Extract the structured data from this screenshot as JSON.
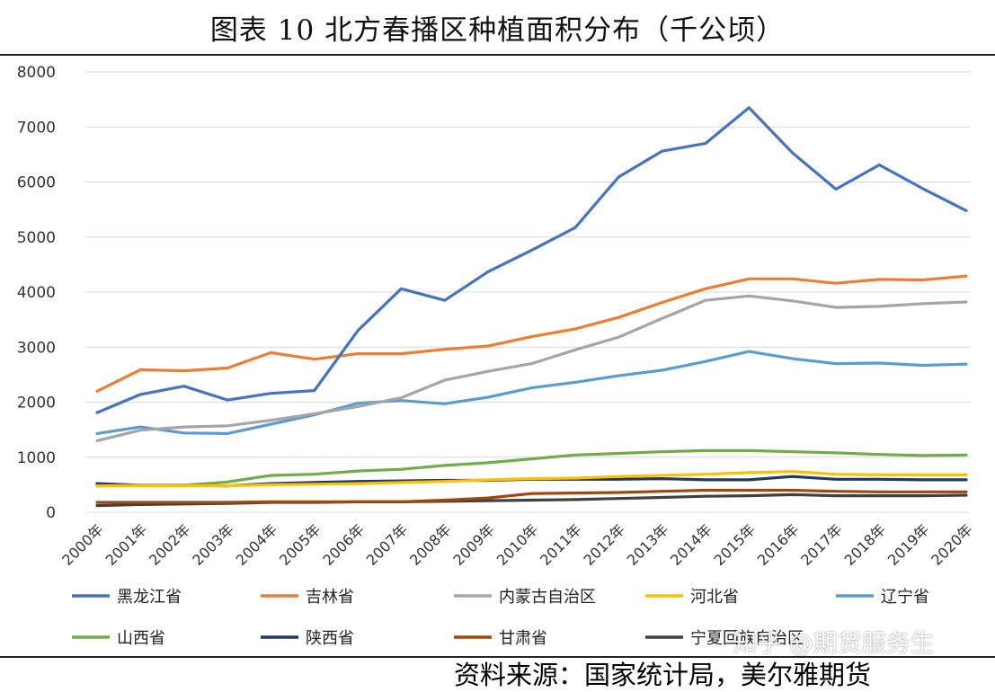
{
  "title": "图表 10 北方春播区种植面积分布（千公顷）",
  "source": "资料来源：国家统计局，美尔雅期货",
  "watermark": "知乎 @期货服务生",
  "chart_data": {
    "type": "line",
    "title": "图表 10 北方春播区种植面积分布（千公顷）",
    "xlabel": "",
    "ylabel": "",
    "x": [
      "2000年",
      "2001年",
      "2002年",
      "2003年",
      "2004年",
      "2005年",
      "2006年",
      "2007年",
      "2008年",
      "2009年",
      "2010年",
      "2011年",
      "2012年",
      "2013年",
      "2014年",
      "2015年",
      "2016年",
      "2017年",
      "2018年",
      "2019年",
      "2020年"
    ],
    "ylim": [
      0,
      8000
    ],
    "yticks": [
      0,
      1000,
      2000,
      3000,
      4000,
      5000,
      6000,
      7000,
      8000
    ],
    "grid": true,
    "legend_position": "bottom",
    "series": [
      {
        "name": "黑龙江省",
        "color": "#4472C4",
        "values": [
          1810,
          2140,
          2290,
          2040,
          2160,
          2210,
          3300,
          4060,
          3850,
          4370,
          4760,
          5170,
          6090,
          6560,
          6700,
          7350,
          6530,
          5870,
          6310,
          5880,
          5480
        ]
      },
      {
        "name": "吉林省",
        "color": "#ED7D31",
        "values": [
          2200,
          2590,
          2570,
          2620,
          2900,
          2780,
          2880,
          2880,
          2960,
          3020,
          3190,
          3330,
          3540,
          3810,
          4060,
          4240,
          4240,
          4160,
          4230,
          4220,
          4290
        ]
      },
      {
        "name": "内蒙古自治区",
        "color": "#A5A5A5",
        "values": [
          1300,
          1490,
          1550,
          1570,
          1670,
          1790,
          1920,
          2080,
          2400,
          2560,
          2700,
          2950,
          3180,
          3520,
          3850,
          3930,
          3840,
          3720,
          3740,
          3790,
          3820
        ]
      },
      {
        "name": "河北省",
        "color": "#FFC000",
        "values": [
          480,
          480,
          480,
          480,
          500,
          510,
          520,
          540,
          560,
          590,
          610,
          620,
          650,
          670,
          690,
          720,
          740,
          690,
          680,
          680,
          680
        ]
      },
      {
        "name": "辽宁省",
        "color": "#5B9BD5",
        "values": [
          1430,
          1550,
          1440,
          1430,
          1600,
          1770,
          1980,
          2030,
          1970,
          2090,
          2260,
          2360,
          2480,
          2580,
          2740,
          2920,
          2790,
          2700,
          2710,
          2670,
          2690
        ]
      },
      {
        "name": "山西省",
        "color": "#70AD47",
        "values": [
          480,
          490,
          490,
          550,
          670,
          690,
          750,
          780,
          850,
          900,
          970,
          1040,
          1070,
          1100,
          1120,
          1120,
          1100,
          1080,
          1050,
          1030,
          1040
        ]
      },
      {
        "name": "陕西省",
        "color": "#1F3864",
        "values": [
          520,
          490,
          490,
          480,
          520,
          540,
          560,
          570,
          580,
          580,
          600,
          600,
          600,
          610,
          590,
          590,
          650,
          600,
          600,
          590,
          590
        ]
      },
      {
        "name": "甘肃省",
        "color": "#9E480E",
        "values": [
          180,
          180,
          180,
          180,
          190,
          190,
          190,
          190,
          220,
          260,
          340,
          350,
          360,
          380,
          400,
          400,
          400,
          380,
          370,
          370,
          370
        ]
      },
      {
        "name": "宁夏回族自治区",
        "color": "#404040",
        "values": [
          120,
          140,
          150,
          160,
          180,
          180,
          190,
          190,
          200,
          210,
          220,
          230,
          250,
          270,
          290,
          300,
          320,
          300,
          300,
          300,
          310
        ]
      }
    ]
  }
}
